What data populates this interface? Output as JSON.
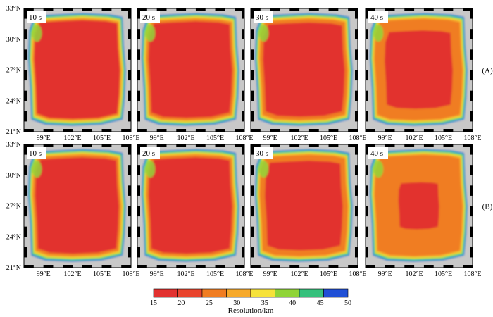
{
  "figure": {
    "lat_ticks": [
      "33°N",
      "30°N",
      "27°N",
      "24°N",
      "21°N"
    ],
    "lon_ticks": [
      "99°E",
      "102°E",
      "105°E",
      "108°E"
    ],
    "rows": [
      {
        "label": "(A)",
        "panels": [
          {
            "time_label": "10 s",
            "period_s": 10
          },
          {
            "time_label": "20 s",
            "period_s": 20
          },
          {
            "time_label": "30 s",
            "period_s": 30
          },
          {
            "time_label": "40 s",
            "period_s": 40
          }
        ]
      },
      {
        "label": "(B)",
        "panels": [
          {
            "time_label": "10 s",
            "period_s": 10
          },
          {
            "time_label": "20 s",
            "period_s": 20
          },
          {
            "time_label": "30 s",
            "period_s": 30
          },
          {
            "time_label": "40 s",
            "period_s": 40
          }
        ]
      }
    ]
  },
  "colorbar": {
    "title": "Resolution/km",
    "ticks": [
      "15",
      "20",
      "25",
      "30",
      "35",
      "40",
      "45",
      "50"
    ],
    "colors": [
      "#e2312f",
      "#e9442d",
      "#f07d22",
      "#f6a92b",
      "#f6e23a",
      "#8fd437",
      "#35c07c",
      "#1f4fd6"
    ]
  },
  "map_colors": {
    "background": "#c8c8c8",
    "outer_ring": "#2a55d8",
    "ring_cyan": "#34c7b8",
    "ring_green": "#92d63a",
    "ring_yellow": "#f4dd3a",
    "ring_orange": "#f4a52c",
    "interior_orange": "#f07d22",
    "core_red": "#e2312f"
  }
}
